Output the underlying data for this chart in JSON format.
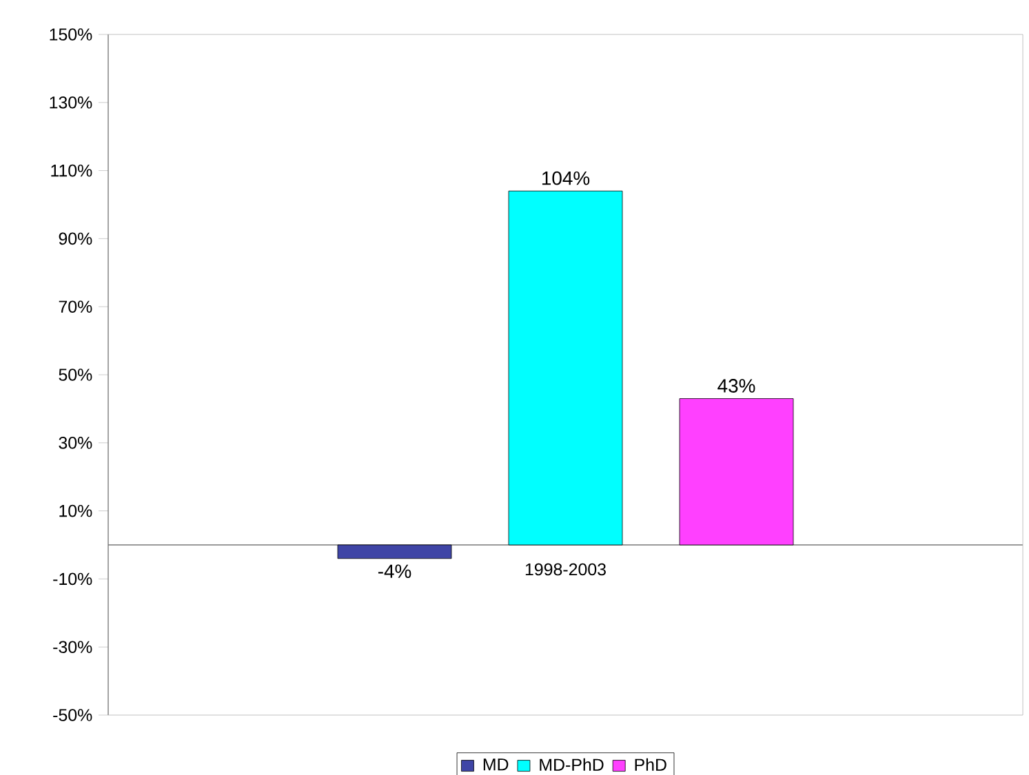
{
  "chart_data": {
    "type": "bar",
    "categories": [
      "1998-2003"
    ],
    "series": [
      {
        "name": "MD",
        "color": "#3f45a6",
        "values": [
          -4
        ],
        "value_labels": [
          "-4%"
        ]
      },
      {
        "name": "MD-PhD",
        "color": "#00ffff",
        "values": [
          104
        ],
        "value_labels": [
          "104%"
        ]
      },
      {
        "name": "PhD",
        "color": "#ff40ff",
        "values": [
          43
        ],
        "value_labels": [
          "43%"
        ]
      }
    ],
    "ylim": [
      -50,
      150
    ],
    "yticks": [
      {
        "value": -50,
        "label": "-50%"
      },
      {
        "value": -30,
        "label": "-30%"
      },
      {
        "value": -10,
        "label": "-10%"
      },
      {
        "value": 10,
        "label": "10%"
      },
      {
        "value": 30,
        "label": "30%"
      },
      {
        "value": 50,
        "label": "50%"
      },
      {
        "value": 70,
        "label": "70%"
      },
      {
        "value": 90,
        "label": "90%"
      },
      {
        "value": 110,
        "label": "110%"
      },
      {
        "value": 130,
        "label": "130%"
      },
      {
        "value": 150,
        "label": "150%"
      }
    ],
    "grid": false,
    "legend": "bottom"
  }
}
